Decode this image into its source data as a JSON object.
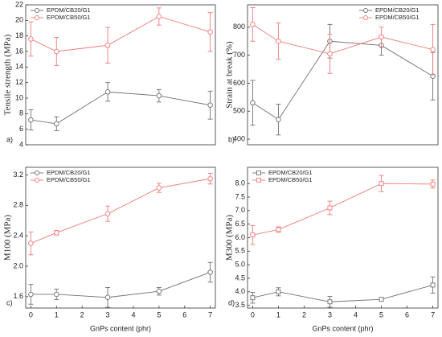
{
  "chart_data": [
    {
      "type": "line",
      "panel_label": "a)",
      "ylabel": "Tensile strength (MPa)",
      "x": [
        0,
        1,
        3,
        5,
        7
      ],
      "xlim": [
        -0.2,
        7.2
      ],
      "ylim": [
        4,
        22
      ],
      "yticks": [
        4,
        6,
        8,
        10,
        12,
        14,
        16,
        18,
        20,
        22
      ],
      "marker": "circle",
      "legend": "upper left",
      "series": [
        {
          "name": "EPDM/CB20/G1",
          "color": "#707070",
          "values": [
            7.2,
            6.7,
            10.8,
            10.3,
            9.1
          ],
          "errors": [
            1.3,
            0.9,
            1.2,
            0.8,
            1.8
          ]
        },
        {
          "name": "EPDM/CB50/G1",
          "color": "#f07a7a",
          "values": [
            17.6,
            16.0,
            16.8,
            20.5,
            18.5
          ],
          "errors": [
            2.2,
            1.8,
            2.3,
            1.1,
            2.5
          ]
        }
      ]
    },
    {
      "type": "line",
      "panel_label": "b)",
      "ylabel": "Strain at break (%)",
      "x": [
        0,
        1,
        3,
        5,
        7
      ],
      "xlim": [
        -0.2,
        7.2
      ],
      "ylim": [
        380,
        880
      ],
      "yticks": [
        400,
        500,
        600,
        700,
        800
      ],
      "marker": "circle",
      "legend": "upper right",
      "series": [
        {
          "name": "EPDM/CB20/G1",
          "color": "#707070",
          "values": [
            530,
            470,
            750,
            735,
            625
          ],
          "errors": [
            80,
            55,
            60,
            35,
            85
          ]
        },
        {
          "name": "EPDM/CB50/G1",
          "color": "#f07a7a",
          "values": [
            810,
            750,
            705,
            765,
            720
          ],
          "errors": [
            60,
            65,
            70,
            35,
            90
          ]
        }
      ]
    },
    {
      "type": "line",
      "panel_label": "c)",
      "ylabel": "M100 (MPa)",
      "xlabel": "GnPs content (phr)",
      "x": [
        0,
        1,
        3,
        5,
        7
      ],
      "xlim": [
        -0.2,
        7.2
      ],
      "xticks": [
        0,
        1,
        2,
        3,
        4,
        5,
        6,
        7
      ],
      "ylim": [
        1.45,
        3.3
      ],
      "yticks": [
        1.6,
        {
          "value": 2,
          "label": "2.0"
        },
        2.4,
        2.8,
        3.2
      ],
      "marker": "circle",
      "legend": "upper left",
      "series": [
        {
          "name": "EPDM/CB20/G1",
          "color": "#707070",
          "values": [
            1.63,
            1.63,
            1.59,
            1.67,
            1.92
          ],
          "errors": [
            0.13,
            0.07,
            0.13,
            0.05,
            0.13
          ]
        },
        {
          "name": "EPDM/CB50/G1",
          "color": "#f07a7a",
          "values": [
            2.3,
            2.44,
            2.69,
            3.03,
            3.15
          ],
          "errors": [
            0.15,
            0.03,
            0.1,
            0.06,
            0.07
          ]
        }
      ]
    },
    {
      "type": "line",
      "panel_label": "d)",
      "ylabel": "M300 (MPa)",
      "xlabel": "GnPs content (phr)",
      "x": [
        0,
        1,
        3,
        5,
        7
      ],
      "xlim": [
        -0.2,
        7.2
      ],
      "xticks": [
        0,
        1,
        2,
        3,
        4,
        5,
        6,
        7
      ],
      "ylim": [
        3.4,
        8.6
      ],
      "yticks": [
        3.5,
        {
          "value": 4,
          "label": "4.0"
        },
        4.5,
        {
          "value": 5,
          "label": "5.0"
        },
        5.5,
        {
          "value": 6,
          "label": "6.0"
        },
        6.5,
        {
          "value": 7,
          "label": "7.0"
        },
        7.5,
        {
          "value": 8,
          "label": "8.0"
        }
      ],
      "marker": "square",
      "legend": "upper left",
      "series": [
        {
          "name": "EPDM/CB20/G1",
          "color": "#707070",
          "values": [
            3.78,
            4.0,
            3.63,
            3.72,
            4.25
          ],
          "errors": [
            0.2,
            0.15,
            0.2,
            0.05,
            0.3
          ]
        },
        {
          "name": "EPDM/CB50/G1",
          "color": "#f07a7a",
          "values": [
            6.1,
            6.3,
            7.1,
            8.0,
            7.98
          ],
          "errors": [
            0.35,
            0.1,
            0.25,
            0.3,
            0.15
          ]
        }
      ]
    }
  ]
}
